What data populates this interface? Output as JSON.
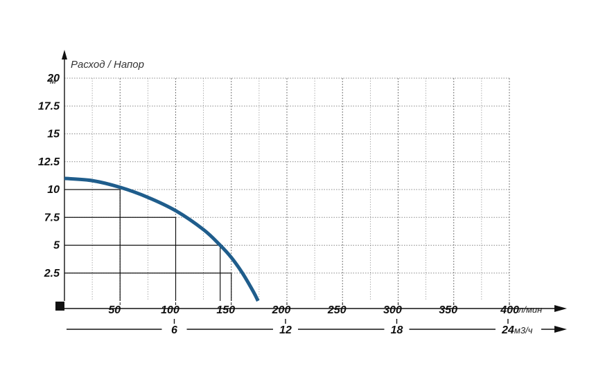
{
  "chart_data": {
    "type": "line",
    "title": "Расход / Напор",
    "ylabel_unit": "м",
    "x_unit_primary": "л/мин",
    "x_unit_secondary": "м3/ч",
    "xlim": [
      0,
      400
    ],
    "ylim": [
      0,
      20
    ],
    "grid": true,
    "x_ticks": [
      50,
      100,
      150,
      200,
      250,
      300,
      350,
      400
    ],
    "x_tick_labels": [
      "50",
      "100",
      "150",
      "200",
      "250",
      "300",
      "350",
      "400"
    ],
    "y_ticks": [
      2.5,
      5,
      7.5,
      10,
      12.5,
      15,
      17.5,
      20
    ],
    "y_tick_labels": [
      "2.5",
      "5",
      "7.5",
      "10",
      "12.5",
      "15",
      "17.5",
      "20"
    ],
    "secondary_ticks": [
      6,
      12,
      18,
      24
    ],
    "secondary_tick_labels": [
      "6",
      "12",
      "18",
      "24"
    ],
    "series": [
      {
        "color": "#1f5d8c",
        "x": [
          0,
          25,
          50,
          75,
          100,
          125,
          140,
          150,
          160,
          170,
          174
        ],
        "y": [
          11.0,
          10.8,
          10.2,
          9.3,
          8.1,
          6.4,
          5.0,
          3.9,
          2.5,
          0.8,
          0
        ]
      }
    ],
    "reference_points": [
      {
        "x": 50,
        "y": 10
      },
      {
        "x": 100,
        "y": 7.5
      },
      {
        "x": 140,
        "y": 5
      },
      {
        "x": 150,
        "y": 2.5
      }
    ]
  }
}
